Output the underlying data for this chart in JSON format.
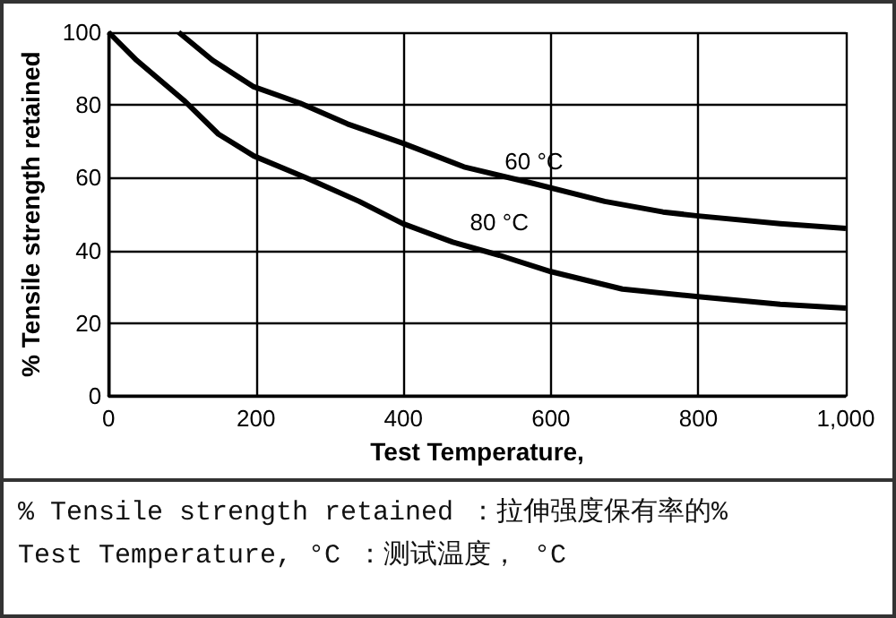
{
  "chart_data": {
    "type": "line",
    "xlabel": "Test Temperature,",
    "ylabel": "% Tensile strength retained",
    "xlim": [
      0,
      1000
    ],
    "xticks": [
      0,
      200,
      400,
      600,
      800,
      {
        "value": 1000,
        "label": "1,000"
      }
    ],
    "ylim": [
      0,
      100
    ],
    "yticks": [
      0,
      20,
      40,
      60,
      80,
      100
    ],
    "grid": true,
    "line_style": "solid",
    "series": [
      {
        "name": "60 °C",
        "color": "#000000",
        "x": [
          95,
          141,
          197,
          260,
          324,
          399,
          482,
          577,
          673,
          752,
          800,
          911,
          1000
        ],
        "values": [
          100,
          92.3,
          85,
          80.5,
          74.8,
          69.5,
          63,
          58.4,
          53.5,
          50.6,
          49.5,
          47.4,
          46.1
        ]
      },
      {
        "name": "80 °C",
        "color": "#000000",
        "x": [
          0,
          38,
          102,
          149,
          197,
          268,
          340,
          399,
          467,
          530,
          600,
          697,
          800,
          911,
          1000
        ],
        "values": [
          100,
          92.3,
          81.3,
          72,
          66,
          60,
          53.5,
          47.4,
          42.3,
          38.7,
          34.2,
          29.4,
          27.3,
          25.2,
          24.2
        ]
      }
    ],
    "annotations": [
      "% Tensile strength retained ：拉伸强度保有率的%",
      "Test Temperature, °C ：测试温度， °C"
    ]
  }
}
